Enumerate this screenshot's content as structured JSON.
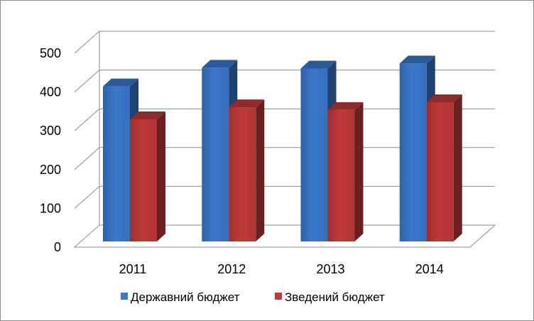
{
  "chart_data": {
    "type": "bar",
    "style": "3d-clustered-column",
    "categories": [
      "2011",
      "2012",
      "2013",
      "2014"
    ],
    "series": [
      {
        "name": "Державний бюджет",
        "values": [
          400,
          448,
          446,
          459
        ],
        "color": "#3b78cc"
      },
      {
        "name": "Зведений бюджет",
        "values": [
          315,
          346,
          339,
          359
        ],
        "color": "#c0393a"
      }
    ],
    "ylim": [
      0,
      500
    ],
    "yticks": [
      "0",
      "100",
      "200",
      "300",
      "400",
      "500"
    ],
    "grid": true,
    "legend_position": "bottom"
  }
}
